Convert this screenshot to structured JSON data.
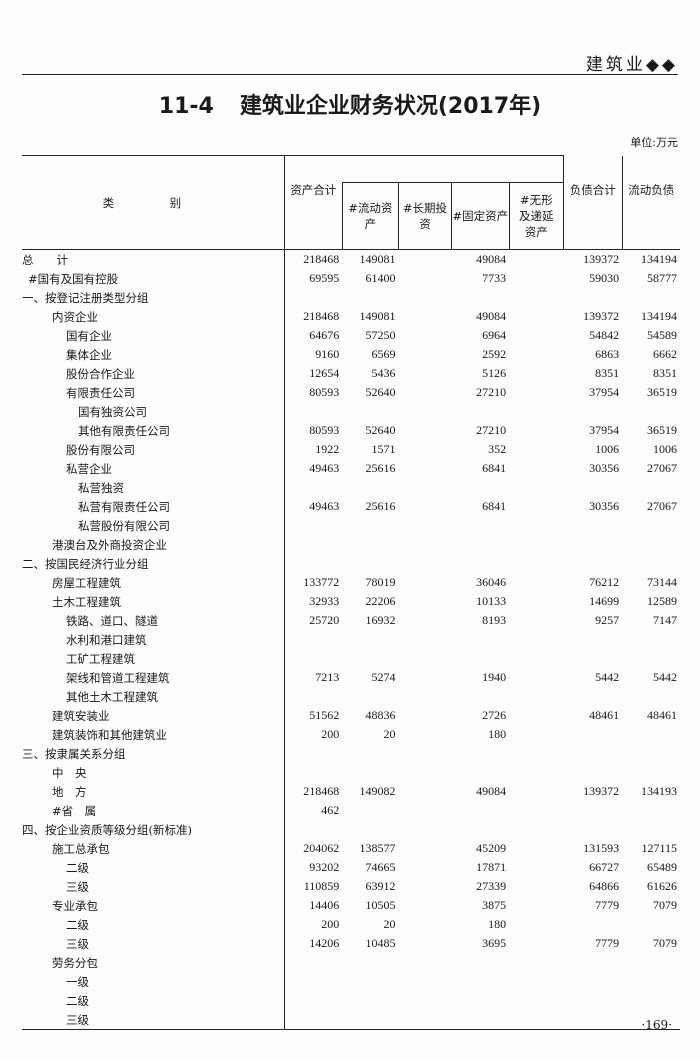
{
  "running_head": "建筑业◆◆",
  "title": {
    "number": "11-4",
    "text": "建筑业企业财务状况(2017年)"
  },
  "unit": "单位:万元",
  "columns": {
    "category": "类　别",
    "total_assets": "资产合计",
    "current_assets": "#流动资产",
    "long_term_investment": "#长期投资",
    "fixed_assets": "#固定资产",
    "intangible_deferred": "#无形及递延资产",
    "total_liabilities": "负债合计",
    "current_liabilities": "流动负债"
  },
  "rows": [
    {
      "label": "总　　计",
      "level": 0,
      "values": [
        "218468",
        "149081",
        "",
        "49084",
        "",
        "139372",
        "134194"
      ]
    },
    {
      "label": "#国有及国有控股",
      "level": 0.5,
      "values": [
        "69595",
        "61400",
        "",
        "7733",
        "",
        "59030",
        "58777"
      ]
    },
    {
      "label": "一、按登记注册类型分组",
      "level": 0,
      "values": [
        "",
        "",
        "",
        "",
        "",
        "",
        ""
      ]
    },
    {
      "label": "内资企业",
      "level": 2,
      "values": [
        "218468",
        "149081",
        "",
        "49084",
        "",
        "139372",
        "134194"
      ]
    },
    {
      "label": "国有企业",
      "level": 3,
      "values": [
        "64676",
        "57250",
        "",
        "6964",
        "",
        "54842",
        "54589"
      ]
    },
    {
      "label": "集体企业",
      "level": 3,
      "values": [
        "9160",
        "6569",
        "",
        "2592",
        "",
        "6863",
        "6662"
      ]
    },
    {
      "label": "股份合作企业",
      "level": 3,
      "values": [
        "12654",
        "5436",
        "",
        "5126",
        "",
        "8351",
        "8351"
      ]
    },
    {
      "label": "有限责任公司",
      "level": 3,
      "values": [
        "80593",
        "52640",
        "",
        "27210",
        "",
        "37954",
        "36519"
      ]
    },
    {
      "label": "国有独资公司",
      "level": 4,
      "values": [
        "",
        "",
        "",
        "",
        "",
        "",
        ""
      ]
    },
    {
      "label": "其他有限责任公司",
      "level": 4,
      "values": [
        "80593",
        "52640",
        "",
        "27210",
        "",
        "37954",
        "36519"
      ]
    },
    {
      "label": "股份有限公司",
      "level": 3,
      "values": [
        "1922",
        "1571",
        "",
        "352",
        "",
        "1006",
        "1006"
      ]
    },
    {
      "label": "私营企业",
      "level": 3,
      "values": [
        "49463",
        "25616",
        "",
        "6841",
        "",
        "30356",
        "27067"
      ]
    },
    {
      "label": "私营独资",
      "level": 4,
      "values": [
        "",
        "",
        "",
        "",
        "",
        "",
        ""
      ]
    },
    {
      "label": "私营有限责任公司",
      "level": 4,
      "values": [
        "49463",
        "25616",
        "",
        "6841",
        "",
        "30356",
        "27067"
      ]
    },
    {
      "label": "私营股份有限公司",
      "level": 4,
      "values": [
        "",
        "",
        "",
        "",
        "",
        "",
        ""
      ]
    },
    {
      "label": "港澳台及外商投资企业",
      "level": 2,
      "values": [
        "",
        "",
        "",
        "",
        "",
        "",
        ""
      ]
    },
    {
      "label": "二、按国民经济行业分组",
      "level": 0,
      "values": [
        "",
        "",
        "",
        "",
        "",
        "",
        ""
      ]
    },
    {
      "label": "房屋工程建筑",
      "level": 2,
      "values": [
        "133772",
        "78019",
        "",
        "36046",
        "",
        "76212",
        "73144"
      ]
    },
    {
      "label": "土木工程建筑",
      "level": 2,
      "values": [
        "32933",
        "22206",
        "",
        "10133",
        "",
        "14699",
        "12589"
      ]
    },
    {
      "label": "铁路、道口、隧道",
      "level": 3,
      "values": [
        "25720",
        "16932",
        "",
        "8193",
        "",
        "9257",
        "7147"
      ]
    },
    {
      "label": "水利和港口建筑",
      "level": 3,
      "values": [
        "",
        "",
        "",
        "",
        "",
        "",
        ""
      ]
    },
    {
      "label": "工矿工程建筑",
      "level": 3,
      "values": [
        "",
        "",
        "",
        "",
        "",
        "",
        ""
      ]
    },
    {
      "label": "架线和管道工程建筑",
      "level": 3,
      "values": [
        "7213",
        "5274",
        "",
        "1940",
        "",
        "5442",
        "5442"
      ]
    },
    {
      "label": "其他土木工程建筑",
      "level": 3,
      "values": [
        "",
        "",
        "",
        "",
        "",
        "",
        ""
      ]
    },
    {
      "label": "建筑安装业",
      "level": 2,
      "values": [
        "51562",
        "48836",
        "",
        "2726",
        "",
        "48461",
        "48461"
      ]
    },
    {
      "label": "建筑装饰和其他建筑业",
      "level": 2,
      "values": [
        "200",
        "20",
        "",
        "180",
        "",
        "",
        ""
      ]
    },
    {
      "label": "三、按隶属关系分组",
      "level": 0,
      "values": [
        "",
        "",
        "",
        "",
        "",
        "",
        ""
      ]
    },
    {
      "label": "中　央",
      "level": 2,
      "values": [
        "",
        "",
        "",
        "",
        "",
        "",
        ""
      ]
    },
    {
      "label": "地　方",
      "level": 2,
      "values": [
        "218468",
        "149082",
        "",
        "49084",
        "",
        "139372",
        "134193"
      ]
    },
    {
      "label": "#省　属",
      "level": 2,
      "values": [
        "462",
        "",
        "",
        "",
        "",
        "",
        ""
      ]
    },
    {
      "label": "四、按企业资质等级分组(新标准)",
      "level": 0,
      "values": [
        "",
        "",
        "",
        "",
        "",
        "",
        ""
      ]
    },
    {
      "label": "施工总承包",
      "level": 2,
      "values": [
        "204062",
        "138577",
        "",
        "45209",
        "",
        "131593",
        "127115"
      ]
    },
    {
      "label": "二级",
      "level": 3,
      "values": [
        "93202",
        "74665",
        "",
        "17871",
        "",
        "66727",
        "65489"
      ]
    },
    {
      "label": "三级",
      "level": 3,
      "values": [
        "110859",
        "63912",
        "",
        "27339",
        "",
        "64866",
        "61626"
      ]
    },
    {
      "label": "专业承包",
      "level": 2,
      "values": [
        "14406",
        "10505",
        "",
        "3875",
        "",
        "7779",
        "7079"
      ]
    },
    {
      "label": "二级",
      "level": 3,
      "values": [
        "200",
        "20",
        "",
        "180",
        "",
        "",
        ""
      ]
    },
    {
      "label": "三级",
      "level": 3,
      "values": [
        "14206",
        "10485",
        "",
        "3695",
        "",
        "7779",
        "7079"
      ]
    },
    {
      "label": "劳务分包",
      "level": 2,
      "values": [
        "",
        "",
        "",
        "",
        "",
        "",
        ""
      ]
    },
    {
      "label": "一级",
      "level": 3,
      "values": [
        "",
        "",
        "",
        "",
        "",
        "",
        ""
      ]
    },
    {
      "label": "二级",
      "level": 3,
      "values": [
        "",
        "",
        "",
        "",
        "",
        "",
        ""
      ]
    },
    {
      "label": "三级",
      "level": 3,
      "values": [
        "",
        "",
        "",
        "",
        "",
        "",
        ""
      ]
    }
  ],
  "page_number": "·169·"
}
